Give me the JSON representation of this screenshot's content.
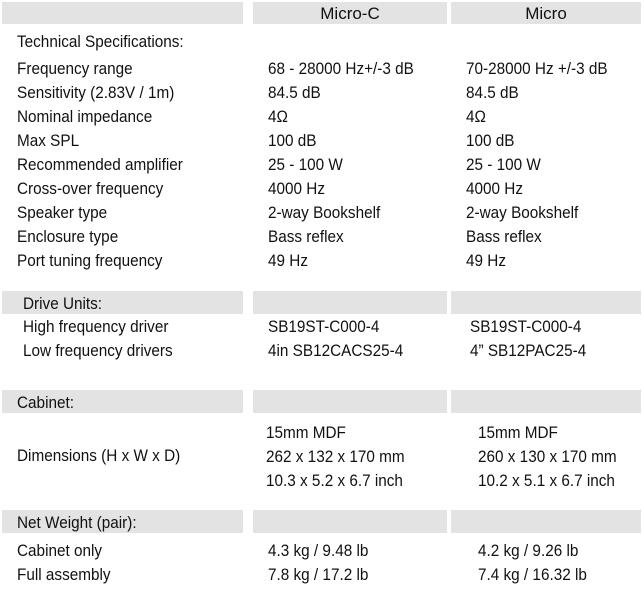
{
  "columns": {
    "micro_c": "Micro-C",
    "micro": "Micro"
  },
  "tech": {
    "title": "Technical Specifications:",
    "rows": [
      {
        "label": "Frequency range",
        "micro_c": "68 - 28000 Hz+/-3 dB",
        "micro": "70-28000 Hz +/-3 dB"
      },
      {
        "label": "Sensitivity (2.83V / 1m)",
        "micro_c": "84.5 dB",
        "micro": "84.5 dB"
      },
      {
        "label": "Nominal impedance",
        "micro_c": "4Ω",
        "micro": "4Ω"
      },
      {
        "label": "Max SPL",
        "micro_c": "100 dB",
        "micro": "100 dB"
      },
      {
        "label": "Recommended amplifier",
        "micro_c": "25 - 100 W",
        "micro": "25 - 100 W"
      },
      {
        "label": "Cross-over frequency",
        "micro_c": "4000 Hz",
        "micro": "4000 Hz"
      },
      {
        "label": "Speaker type",
        "micro_c": "2-way Bookshelf",
        "micro": "2-way Bookshelf"
      },
      {
        "label": "Enclosure type",
        "micro_c": "Bass reflex",
        "micro": "Bass reflex"
      },
      {
        "label": "Port tuning frequency",
        "micro_c": "49 Hz",
        "micro": "49 Hz"
      }
    ]
  },
  "drive_units": {
    "title": "Drive Units:",
    "rows": [
      {
        "label": "High frequency driver",
        "micro_c": "SB19ST-C000-4",
        "micro": "SB19ST-C000-4"
      },
      {
        "label": "Low frequency drivers",
        "micro_c": "4in SB12CACS25-4",
        "micro": "4” SB12PAC25-4"
      }
    ]
  },
  "cabinet": {
    "title": "Cabinet:",
    "label": "Dimensions (H x W x D)",
    "micro_c": [
      "15mm MDF",
      "262 x 132 x 170 mm",
      "10.3 x 5.2 x 6.7 inch"
    ],
    "micro": [
      "15mm MDF",
      "260 x 130 x 170 mm",
      "10.2 x 5.1 x 6.7 inch"
    ]
  },
  "net_weight": {
    "title": "Net Weight (pair):",
    "rows": [
      {
        "label": "Cabinet only",
        "micro_c": "4.3 kg / 9.48 lb",
        "micro": "4.2 kg / 9.26 lb"
      },
      {
        "label": "Full assembly",
        "micro_c": "7.8 kg / 17.2 lb",
        "micro": "7.4 kg / 16.32 lb"
      }
    ]
  }
}
